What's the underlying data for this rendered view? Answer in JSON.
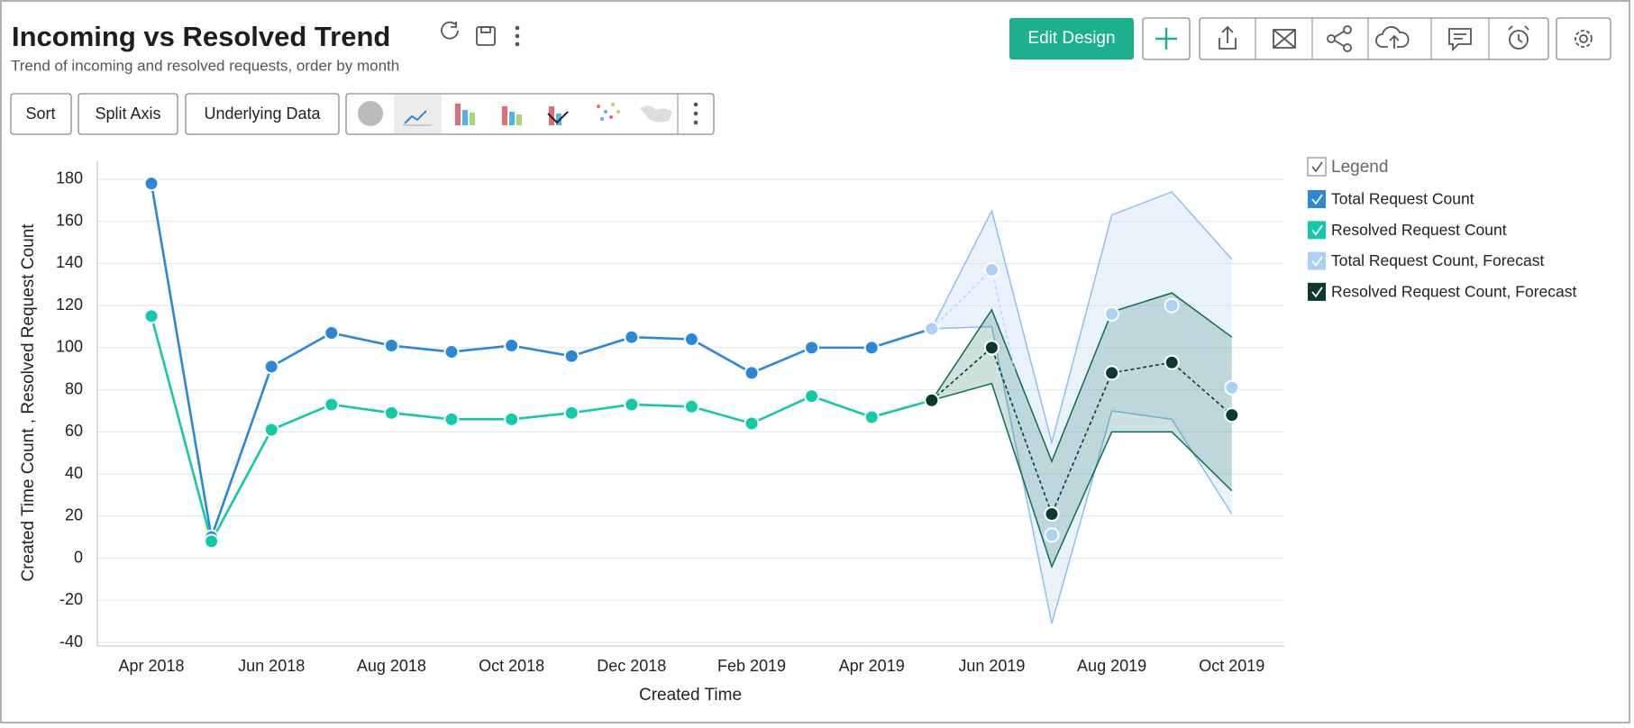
{
  "title": "Incoming vs Resolved Trend",
  "subtitle": "Trend of incoming and resolved requests, order by month",
  "toolbar": {
    "buttons": [
      "Sort",
      "Split Axis",
      "Underlying Data"
    ]
  },
  "actions": {
    "edit_design": "Edit Design"
  },
  "chart_data": {
    "type": "line",
    "x_label": "Created Time",
    "y_label": "Created Time Count , Resolved Request Count",
    "legend_title": "Legend",
    "legend_position": "right",
    "grid": true,
    "categories": [
      "Apr 2018",
      null,
      "Jun 2018",
      null,
      "Aug 2018",
      null,
      "Oct 2018",
      null,
      "Dec 2018",
      null,
      "Feb 2019",
      null,
      "Apr 2019",
      null,
      "Jun 2019",
      null,
      "Aug 2019",
      null,
      "Oct 2019"
    ],
    "ylim": [
      -40,
      190
    ],
    "yticks": [
      -40,
      -20,
      0,
      20,
      40,
      60,
      80,
      100,
      120,
      140,
      160,
      180
    ],
    "series": [
      {
        "name": "Total Request Count",
        "color": "#2b88d8",
        "line_style": "solid",
        "values": [
          178,
          10,
          91,
          107,
          101,
          98,
          101,
          96,
          105,
          104,
          88,
          100,
          100,
          109,
          null,
          null,
          null,
          null,
          null
        ]
      },
      {
        "name": "Resolved Request Count",
        "color": "#12c9a8",
        "line_style": "solid",
        "values": [
          115,
          8,
          61,
          73,
          69,
          66,
          66,
          69,
          73,
          72,
          64,
          77,
          67,
          75,
          null,
          null,
          null,
          null,
          null
        ]
      },
      {
        "name": "Total Request Count, Forecast",
        "color": "#a9d1f5",
        "line_style": "dashed",
        "values": [
          null,
          null,
          null,
          null,
          null,
          null,
          null,
          null,
          null,
          null,
          null,
          null,
          null,
          109,
          137,
          11,
          116,
          120,
          81
        ],
        "lower": [
          null,
          null,
          null,
          null,
          null,
          null,
          null,
          null,
          null,
          null,
          null,
          null,
          null,
          109,
          110,
          -31,
          70,
          66,
          21
        ],
        "upper": [
          null,
          null,
          null,
          null,
          null,
          null,
          null,
          null,
          null,
          null,
          null,
          null,
          null,
          109,
          165,
          55,
          163,
          174,
          142
        ]
      },
      {
        "name": "Resolved Request Count, Forecast",
        "color": "#0b3b2e",
        "line_style": "dashed",
        "values": [
          null,
          null,
          null,
          null,
          null,
          null,
          null,
          null,
          null,
          null,
          null,
          null,
          null,
          75,
          100,
          21,
          88,
          93,
          68
        ],
        "lower": [
          null,
          null,
          null,
          null,
          null,
          null,
          null,
          null,
          null,
          null,
          null,
          null,
          null,
          75,
          83,
          -4,
          60,
          60,
          32
        ],
        "upper": [
          null,
          null,
          null,
          null,
          null,
          null,
          null,
          null,
          null,
          null,
          null,
          null,
          null,
          75,
          118,
          46,
          117,
          126,
          105
        ]
      }
    ]
  }
}
